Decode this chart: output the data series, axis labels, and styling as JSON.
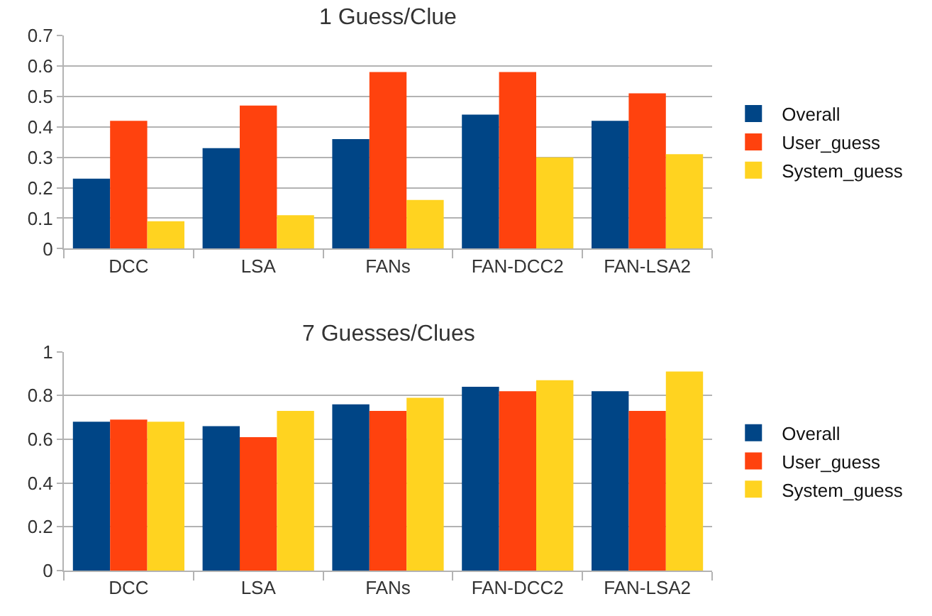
{
  "chart_data": [
    {
      "type": "bar",
      "title": "1 Guess/Clue",
      "categories": [
        "DCC",
        "LSA",
        "FANs",
        "FAN-DCC2",
        "FAN-LSA2"
      ],
      "ylim": [
        0,
        0.7
      ],
      "yticks": [
        0,
        0.1,
        0.2,
        0.3,
        0.4,
        0.5,
        0.6,
        0.7
      ],
      "grid": "y",
      "legend": "right",
      "series": [
        {
          "name": "Overall",
          "color": "#004586",
          "values": [
            0.23,
            0.33,
            0.36,
            0.44,
            0.42
          ]
        },
        {
          "name": "User_guess",
          "color": "#ff420e",
          "values": [
            0.42,
            0.47,
            0.58,
            0.58,
            0.51
          ]
        },
        {
          "name": "System_guess",
          "color": "#ffd320",
          "values": [
            0.09,
            0.11,
            0.16,
            0.3,
            0.31
          ]
        }
      ]
    },
    {
      "type": "bar",
      "title": "7 Guesses/Clues",
      "categories": [
        "DCC",
        "LSA",
        "FANs",
        "FAN-DCC2",
        "FAN-LSA2"
      ],
      "ylim": [
        0,
        1
      ],
      "yticks": [
        0,
        {
          "value": 0.2,
          "label": "0.2"
        },
        {
          "value": 0.4,
          "label": "0.4"
        },
        {
          "value": 0.6,
          "label": "0.6"
        },
        {
          "value": 0.8,
          "label": "0.8"
        },
        1
      ],
      "grid": "y",
      "legend": "right",
      "series": [
        {
          "name": "Overall",
          "color": "#004586",
          "values": [
            0.68,
            0.66,
            0.76,
            0.84,
            0.82
          ]
        },
        {
          "name": "User_guess",
          "color": "#ff420e",
          "values": [
            0.69,
            0.61,
            0.73,
            0.82,
            0.73
          ]
        },
        {
          "name": "System_guess",
          "color": "#ffd320",
          "values": [
            0.68,
            0.73,
            0.79,
            0.87,
            0.91
          ]
        }
      ]
    }
  ]
}
